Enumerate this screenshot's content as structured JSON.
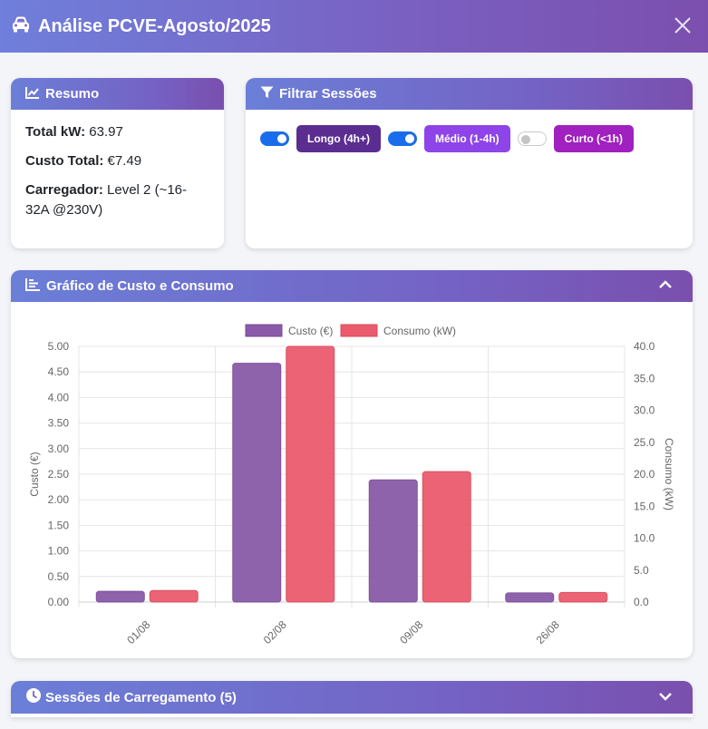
{
  "header": {
    "title": "Análise PCVE-Agosto/2025"
  },
  "resumo": {
    "title": "Resumo",
    "total_kw_label": "Total kW:",
    "total_kw_value": "63.97",
    "custo_label": "Custo Total:",
    "custo_value": "€7.49",
    "carregador_label": "Carregador:",
    "carregador_value": "Level 2 (~16-32A @230V)"
  },
  "filtro": {
    "title": "Filtrar Sessões",
    "options": [
      {
        "label": "Longo (4h+)",
        "enabled": true,
        "color": "#5b2d91"
      },
      {
        "label": "Médio (1-4h)",
        "enabled": true,
        "color": "#8e44e8"
      },
      {
        "label": "Curto (<1h)",
        "enabled": false,
        "color": "#a020c0"
      }
    ]
  },
  "grafico": {
    "title": "Gráfico de Custo e Consumo"
  },
  "sessoes": {
    "title": "Sessões de Carregamento (5)"
  },
  "chart_data": {
    "type": "bar",
    "categories": [
      "01/08",
      "02/08",
      "09/08",
      "26/08"
    ],
    "series": [
      {
        "name": "Custo (€)",
        "axis": "left",
        "color": "#8a5aa8",
        "values": [
          0.21,
          4.67,
          2.39,
          0.18
        ]
      },
      {
        "name": "Consumo (kW)",
        "axis": "right",
        "color": "#ea5b6d",
        "values": [
          1.8,
          40.0,
          20.4,
          1.5
        ]
      }
    ],
    "ylabel": "Custo (€)",
    "y2label": "Consumo (kW)",
    "ylim": [
      0,
      5
    ],
    "y2lim": [
      0,
      40
    ],
    "yticks": [
      "0.00",
      "0.50",
      "1.00",
      "1.50",
      "2.00",
      "2.50",
      "3.00",
      "3.50",
      "4.00",
      "4.50",
      "5.00"
    ],
    "y2ticks": [
      "0.0",
      "5.0",
      "10.0",
      "15.0",
      "20.0",
      "25.0",
      "30.0",
      "35.0",
      "40.0"
    ],
    "legend": "top"
  }
}
